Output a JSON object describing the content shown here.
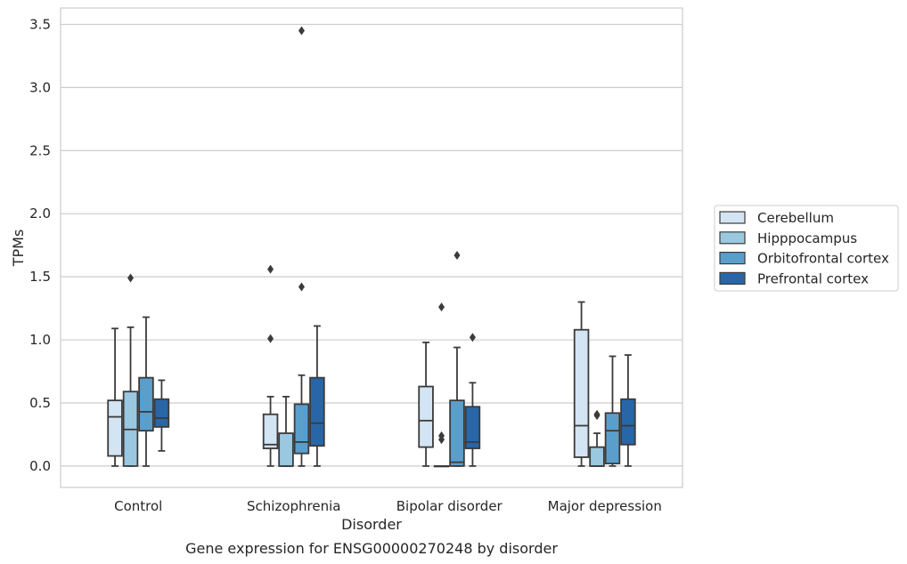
{
  "chart_data": {
    "type": "box",
    "title": "Gene expression for ENSG00000270248 by disorder",
    "xlabel": "Disorder",
    "ylabel": "TPMs",
    "ylim": [
      -0.17,
      3.63
    ],
    "yticks": [
      "0.0",
      "0.5",
      "1.0",
      "1.5",
      "2.0",
      "2.5",
      "3.0",
      "3.5"
    ],
    "grid": "horizontal",
    "legend_position": "right",
    "categories": [
      "Control",
      "Schizophrenia",
      "Bipolar disorder",
      "Major depression"
    ],
    "series": [
      {
        "name": "Cerebellum",
        "color": "#d3e4f3",
        "boxes": [
          {
            "whislo": 0.0,
            "q1": 0.08,
            "med": 0.39,
            "q3": 0.52,
            "whishi": 1.09,
            "fliers": []
          },
          {
            "whislo": 0.0,
            "q1": 0.14,
            "med": 0.17,
            "q3": 0.41,
            "whishi": 0.55,
            "fliers": [
              1.56,
              1.01
            ]
          },
          {
            "whislo": 0.0,
            "q1": 0.15,
            "med": 0.36,
            "q3": 0.63,
            "whishi": 0.98,
            "fliers": []
          },
          {
            "whislo": 0.0,
            "q1": 0.07,
            "med": 0.32,
            "q3": 1.08,
            "whishi": 1.3,
            "fliers": []
          }
        ]
      },
      {
        "name": "Hipppocampus",
        "color": "#9ac8e0",
        "boxes": [
          {
            "whislo": 0.0,
            "q1": 0.0,
            "med": 0.29,
            "q3": 0.59,
            "whishi": 1.1,
            "fliers": [
              1.49
            ]
          },
          {
            "whislo": 0.0,
            "q1": 0.0,
            "med": 0.0,
            "q3": 0.26,
            "whishi": 0.55,
            "fliers": []
          },
          {
            "whislo": 0.0,
            "q1": 0.0,
            "med": 0.0,
            "q3": 0.0,
            "whishi": 0.0,
            "fliers": [
              0.24,
              0.21,
              1.26
            ]
          },
          {
            "whislo": 0.0,
            "q1": 0.0,
            "med": 0.0,
            "q3": 0.15,
            "whishi": 0.26,
            "fliers": [
              0.41,
              0.4
            ]
          }
        ]
      },
      {
        "name": "Orbitofrontal cortex",
        "color": "#5a9fcc",
        "boxes": [
          {
            "whislo": 0.0,
            "q1": 0.28,
            "med": 0.43,
            "q3": 0.7,
            "whishi": 1.18,
            "fliers": []
          },
          {
            "whislo": 0.0,
            "q1": 0.1,
            "med": 0.19,
            "q3": 0.49,
            "whishi": 0.72,
            "fliers": [
              1.42,
              3.45
            ]
          },
          {
            "whislo": 0.0,
            "q1": 0.0,
            "med": 0.03,
            "q3": 0.52,
            "whishi": 0.94,
            "fliers": [
              1.67
            ]
          },
          {
            "whislo": 0.0,
            "q1": 0.02,
            "med": 0.28,
            "q3": 0.42,
            "whishi": 0.87,
            "fliers": []
          }
        ]
      },
      {
        "name": "Prefrontal cortex",
        "color": "#2866a8",
        "boxes": [
          {
            "whislo": 0.12,
            "q1": 0.31,
            "med": 0.38,
            "q3": 0.53,
            "whishi": 0.68,
            "fliers": []
          },
          {
            "whislo": 0.0,
            "q1": 0.16,
            "med": 0.34,
            "q3": 0.7,
            "whishi": 1.11,
            "fliers": []
          },
          {
            "whislo": 0.0,
            "q1": 0.14,
            "med": 0.19,
            "q3": 0.47,
            "whishi": 0.66,
            "fliers": [
              1.02
            ]
          },
          {
            "whislo": 0.0,
            "q1": 0.17,
            "med": 0.32,
            "q3": 0.53,
            "whishi": 0.88,
            "fliers": []
          }
        ]
      }
    ]
  }
}
